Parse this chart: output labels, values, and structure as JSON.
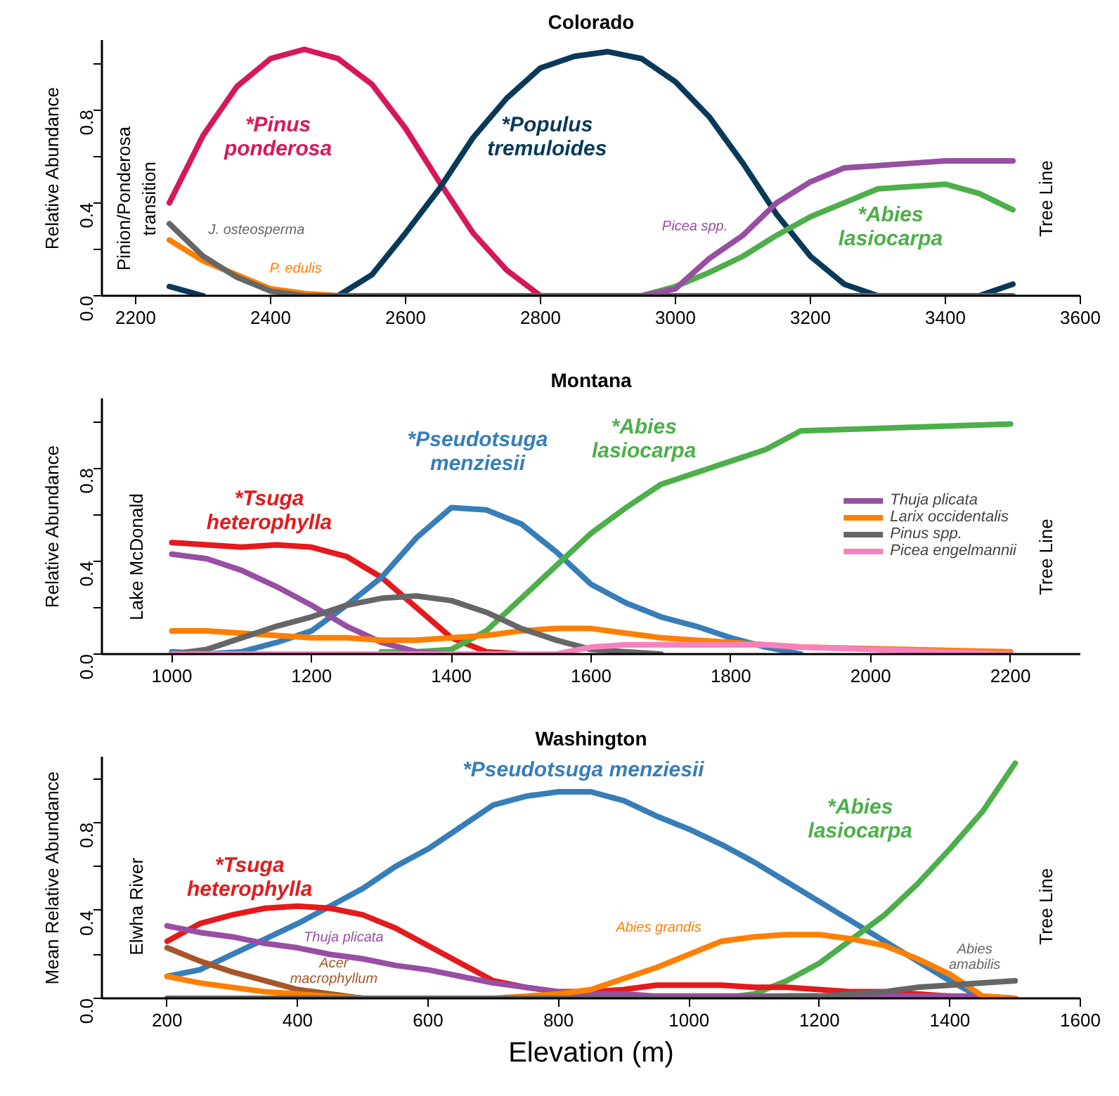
{
  "chart_data": [
    {
      "type": "line",
      "title": "Colorado",
      "ylabel": "Relative Abundance",
      "x": [
        2250,
        2300,
        2350,
        2400,
        2450,
        2500,
        2550,
        2600,
        2650,
        2700,
        2750,
        2800,
        2850,
        2900,
        2950,
        3000,
        3050,
        3100,
        3150,
        3200,
        3250,
        3300,
        3350,
        3400,
        3450,
        3500
      ],
      "series": [
        {
          "color": "#d6185b",
          "values": [
            0.4,
            0.69,
            0.9,
            1.02,
            1.06,
            1.02,
            0.91,
            0.72,
            0.49,
            0.27,
            0.11,
            0,
            null,
            null,
            null,
            null,
            null,
            null,
            null,
            null,
            null,
            null,
            null,
            null,
            null,
            null
          ]
        },
        {
          "color": "#08395a",
          "values": [
            0.04,
            0,
            null,
            null,
            null,
            0,
            0.09,
            0.27,
            0.46,
            0.68,
            0.85,
            0.98,
            1.03,
            1.05,
            1.02,
            0.92,
            0.77,
            0.57,
            0.35,
            0.17,
            0.05,
            0,
            null,
            null,
            0,
            0.05
          ]
        },
        {
          "color": "#4daf4a",
          "values": [
            null,
            null,
            null,
            null,
            null,
            null,
            null,
            null,
            null,
            null,
            null,
            null,
            null,
            null,
            0,
            0.04,
            0.1,
            0.17,
            0.26,
            0.34,
            0.4,
            0.46,
            0.47,
            0.48,
            0.44,
            0.37
          ]
        },
        {
          "color": "#984ea3",
          "values": [
            null,
            null,
            null,
            null,
            null,
            null,
            null,
            null,
            null,
            null,
            null,
            null,
            null,
            null,
            0,
            0.03,
            0.16,
            0.26,
            0.4,
            0.49,
            0.55,
            0.56,
            0.57,
            0.58,
            0.58,
            0.58
          ]
        },
        {
          "color": "#ff7f00",
          "values": [
            0.24,
            0.15,
            0.09,
            0.03,
            0.01,
            0,
            null,
            null,
            null,
            null,
            null,
            null,
            null,
            null,
            null,
            null,
            null,
            null,
            null,
            null,
            null,
            null,
            null,
            null,
            null,
            null
          ]
        },
        {
          "color": "#666666",
          "values": [
            0.31,
            0.17,
            0.08,
            0.02,
            0,
            0,
            0,
            0,
            0,
            0,
            0,
            0,
            0,
            0,
            0,
            0,
            0,
            0,
            0,
            0,
            0,
            0,
            0,
            0,
            0,
            0
          ]
        }
      ],
      "annotations": [
        "*Pinus\nponderosa",
        "*Populus\ntremuloides",
        "*Abies\nlasiocarpa",
        "Picea spp.",
        "J. osteosperma",
        "P. edulis",
        "Pinion/Ponderosa\ntransition",
        "Tree Line"
      ],
      "xlim": [
        2150,
        3600
      ],
      "xticks": [
        2200,
        2400,
        2600,
        2800,
        3000,
        3200,
        3400,
        3600
      ],
      "ylim": [
        0,
        1.1
      ],
      "yticks": [
        {
          "value": 0,
          "label": "0.0"
        },
        {
          "value": 0.2,
          "label": null
        },
        {
          "value": 0.4,
          "label": "0.4"
        },
        {
          "value": 0.6,
          "label": null
        },
        {
          "value": 0.8,
          "label": "0.8"
        },
        {
          "value": 1.0,
          "label": null
        }
      ]
    },
    {
      "type": "line",
      "title": "Montana",
      "ylabel": "Relative Abundance",
      "x": [
        1000,
        1050,
        1100,
        1150,
        1200,
        1250,
        1300,
        1350,
        1400,
        1450,
        1500,
        1550,
        1600,
        1650,
        1700,
        1750,
        1800,
        1850,
        1900,
        2200
      ],
      "series": [
        {
          "color": "#e41a1c",
          "values": [
            0.48,
            0.47,
            0.46,
            0.47,
            0.46,
            0.42,
            0.33,
            0.2,
            0.07,
            0.01,
            0,
            null,
            null,
            null,
            null,
            null,
            null,
            null,
            null,
            null
          ]
        },
        {
          "color": "#377eb8",
          "values": [
            0.01,
            0,
            0.01,
            0.05,
            0.1,
            0.21,
            0.33,
            0.5,
            0.63,
            0.62,
            0.56,
            0.44,
            0.3,
            0.22,
            0.16,
            0.12,
            0.07,
            0.03,
            0,
            null
          ]
        },
        {
          "color": "#4daf4a",
          "values": [
            null,
            null,
            null,
            null,
            null,
            null,
            0.01,
            0.01,
            0.02,
            0.1,
            0.24,
            0.38,
            0.52,
            0.63,
            0.73,
            0.78,
            0.83,
            0.88,
            0.96,
            0.99
          ]
        },
        {
          "name": "Thuja plicata",
          "color": "#984ea3",
          "values": [
            0.43,
            0.41,
            0.36,
            0.29,
            0.21,
            0.12,
            0.05,
            0.01,
            0,
            null,
            null,
            null,
            null,
            null,
            null,
            null,
            null,
            null,
            null,
            null
          ]
        },
        {
          "name": "Larix occidentalis",
          "color": "#ff7f00",
          "values": [
            0.1,
            0.1,
            0.09,
            0.08,
            0.07,
            0.07,
            0.06,
            0.06,
            0.07,
            0.08,
            0.1,
            0.11,
            0.11,
            0.09,
            0.07,
            0.06,
            0.05,
            0.04,
            0.03,
            0.01
          ]
        },
        {
          "name": "Pinus spp.",
          "color": "#666666",
          "values": [
            0,
            0.02,
            0.07,
            0.12,
            0.16,
            0.21,
            0.24,
            0.25,
            0.23,
            0.18,
            0.11,
            0.06,
            0.02,
            0.01,
            0,
            null,
            null,
            null,
            null,
            null
          ]
        },
        {
          "name": "Picea engelmannii",
          "color": "#f781bf",
          "values": [
            0,
            0,
            0,
            0,
            0,
            0,
            0,
            0,
            0,
            0,
            0,
            0,
            0.03,
            0.04,
            0.04,
            0.04,
            0.04,
            0.04,
            0.03,
            0
          ]
        }
      ],
      "annotations": [
        "*Tsuga\nheterophylla",
        "*Pseudotsuga\nmenziesii",
        "*Abies\nlasiocarpa",
        "Lake McDonald",
        "Tree Line"
      ],
      "legend": "right",
      "xlim": [
        900,
        2300
      ],
      "xticks": [
        1000,
        1200,
        1400,
        1600,
        1800,
        2000,
        2200
      ],
      "ylim": [
        0,
        1.1
      ],
      "yticks": [
        {
          "value": 0,
          "label": "0.0"
        },
        {
          "value": 0.2,
          "label": null
        },
        {
          "value": 0.4,
          "label": "0.4"
        },
        {
          "value": 0.6,
          "label": null
        },
        {
          "value": 0.8,
          "label": "0.8"
        },
        {
          "value": 1.0,
          "label": null
        }
      ]
    },
    {
      "type": "line",
      "title": "Washington",
      "ylabel": "Mean Relative Abundance",
      "xlabel": "Elevation (m)",
      "x": [
        200,
        250,
        300,
        350,
        400,
        450,
        500,
        550,
        600,
        650,
        700,
        750,
        800,
        850,
        900,
        950,
        1000,
        1050,
        1100,
        1150,
        1200,
        1250,
        1300,
        1350,
        1400,
        1450,
        1500
      ],
      "series": [
        {
          "color": "#377eb8",
          "values": [
            0.1,
            0.13,
            0.2,
            0.27,
            0.34,
            0.42,
            0.5,
            0.6,
            0.68,
            0.78,
            0.88,
            0.92,
            0.94,
            0.94,
            0.9,
            0.83,
            0.77,
            0.7,
            0.62,
            0.53,
            0.44,
            0.35,
            0.26,
            0.17,
            0.08,
            0,
            null
          ]
        },
        {
          "color": "#4daf4a",
          "values": [
            null,
            null,
            null,
            null,
            null,
            null,
            null,
            null,
            null,
            null,
            null,
            null,
            null,
            null,
            null,
            null,
            null,
            0,
            0.02,
            0.08,
            0.16,
            0.27,
            0.38,
            0.52,
            0.68,
            0.85,
            1.07
          ]
        },
        {
          "color": "#e41a1c",
          "values": [
            0.26,
            0.34,
            0.38,
            0.41,
            0.42,
            0.41,
            0.38,
            0.32,
            0.24,
            0.16,
            0.08,
            0.05,
            0.03,
            0.03,
            0.04,
            0.06,
            0.06,
            0.06,
            0.05,
            0.05,
            0.04,
            0.03,
            0.03,
            0.02,
            0.01,
            0,
            null
          ]
        },
        {
          "color": "#984ea3",
          "values": [
            0.33,
            0.3,
            0.28,
            0.25,
            0.23,
            0.2,
            0.18,
            0.15,
            0.13,
            0.1,
            0.07,
            0.05,
            0.03,
            0.02,
            0.02,
            0.01,
            0.01,
            0.01,
            0.01,
            0.01,
            0.01,
            0.01,
            0.01,
            0.01,
            0.01,
            0.01,
            0
          ]
        },
        {
          "color": "#a65628",
          "values": [
            0.23,
            0.17,
            0.12,
            0.08,
            0.04,
            0.02,
            0,
            null,
            null,
            null,
            null,
            null,
            null,
            null,
            null,
            null,
            null,
            null,
            null,
            null,
            null,
            null,
            null,
            null,
            null,
            null,
            null
          ]
        },
        {
          "color": "#ff7f00",
          "values": [
            0.1,
            0.07,
            0.05,
            0.03,
            0.02,
            0.01,
            0,
            null,
            null,
            null,
            0,
            0.01,
            0.02,
            0.04,
            0.09,
            0.14,
            0.2,
            0.26,
            0.28,
            0.29,
            0.29,
            0.27,
            0.24,
            0.18,
            0.11,
            0.01,
            0
          ]
        },
        {
          "color": "#666666",
          "values": [
            0,
            0,
            0,
            0,
            0,
            0,
            0,
            0,
            0,
            0,
            0,
            0,
            0,
            0,
            0,
            0,
            0,
            0,
            0,
            0.01,
            0.01,
            0.02,
            0.03,
            0.05,
            0.06,
            0.07,
            0.08
          ]
        }
      ],
      "annotations": [
        "*Pseudotsuga menziesii",
        "*Abies\nlasiocarpa",
        "*Tsuga\nheterophylla",
        "Thuja plicata",
        "Acer\nmacrophyllum",
        "Abies grandis",
        "Abies\namabilis",
        "Elwha River",
        "Tree Line"
      ],
      "xlim": [
        100,
        1600
      ],
      "xticks": [
        200,
        400,
        600,
        800,
        1000,
        1200,
        1400,
        1600
      ],
      "ylim": [
        0,
        1.1
      ],
      "yticks": [
        {
          "value": 0,
          "label": "0.0"
        },
        {
          "value": 0.2,
          "label": null
        },
        {
          "value": 0.4,
          "label": "0.4"
        },
        {
          "value": 0.6,
          "label": null
        },
        {
          "value": 0.8,
          "label": "0.8"
        },
        {
          "value": 1.0,
          "label": null
        }
      ]
    }
  ]
}
